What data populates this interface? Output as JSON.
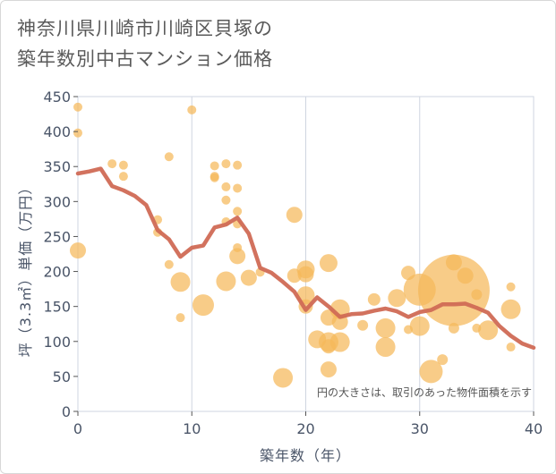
{
  "title_line1": "神奈川県川崎市川崎区貝塚の",
  "title_line2": "築年数別中古マンション価格",
  "chart_data": {
    "type": "scatter",
    "xlabel": "築年数（年）",
    "ylabel": "坪（3.3㎡）単価（万円）",
    "xlim": [
      0,
      40
    ],
    "ylim": [
      0,
      450
    ],
    "x_ticks": [
      "0",
      "10",
      "20",
      "30",
      "40"
    ],
    "y_ticks": [
      "0",
      "50",
      "100",
      "150",
      "200",
      "250",
      "300",
      "350",
      "400",
      "450"
    ],
    "grid": true,
    "note": "円の大きさは、取引のあった物件面積を示す",
    "bubble_color": "#f5b95a",
    "line_color": "#d06a55",
    "bubbles": [
      {
        "x": 0,
        "y": 435,
        "r": 5
      },
      {
        "x": 0,
        "y": 398,
        "r": 5
      },
      {
        "x": 0,
        "y": 230,
        "r": 9
      },
      {
        "x": 3,
        "y": 354,
        "r": 5
      },
      {
        "x": 4,
        "y": 352,
        "r": 5
      },
      {
        "x": 4,
        "y": 336,
        "r": 5
      },
      {
        "x": 7,
        "y": 274,
        "r": 5
      },
      {
        "x": 7,
        "y": 256,
        "r": 5
      },
      {
        "x": 8,
        "y": 364,
        "r": 5
      },
      {
        "x": 8,
        "y": 210,
        "r": 5
      },
      {
        "x": 9,
        "y": 185,
        "r": 11
      },
      {
        "x": 9,
        "y": 134,
        "r": 5
      },
      {
        "x": 10,
        "y": 431,
        "r": 5
      },
      {
        "x": 11,
        "y": 152,
        "r": 12
      },
      {
        "x": 12,
        "y": 351,
        "r": 5
      },
      {
        "x": 12,
        "y": 336,
        "r": 5
      },
      {
        "x": 12,
        "y": 334,
        "r": 5
      },
      {
        "x": 13,
        "y": 354,
        "r": 5
      },
      {
        "x": 13,
        "y": 321,
        "r": 5
      },
      {
        "x": 13,
        "y": 302,
        "r": 5
      },
      {
        "x": 13,
        "y": 271,
        "r": 5
      },
      {
        "x": 13,
        "y": 186,
        "r": 11
      },
      {
        "x": 14,
        "y": 352,
        "r": 5
      },
      {
        "x": 14,
        "y": 319,
        "r": 5
      },
      {
        "x": 14,
        "y": 286,
        "r": 5
      },
      {
        "x": 14,
        "y": 268,
        "r": 5
      },
      {
        "x": 14,
        "y": 234,
        "r": 5
      },
      {
        "x": 14,
        "y": 222,
        "r": 9
      },
      {
        "x": 15,
        "y": 191,
        "r": 9
      },
      {
        "x": 16,
        "y": 199,
        "r": 5
      },
      {
        "x": 18,
        "y": 48,
        "r": 11
      },
      {
        "x": 19,
        "y": 281,
        "r": 9
      },
      {
        "x": 19,
        "y": 194,
        "r": 8
      },
      {
        "x": 20,
        "y": 203,
        "r": 10
      },
      {
        "x": 20,
        "y": 196,
        "r": 9
      },
      {
        "x": 20,
        "y": 166,
        "r": 10
      },
      {
        "x": 20,
        "y": 150,
        "r": 8
      },
      {
        "x": 21,
        "y": 103,
        "r": 10
      },
      {
        "x": 22,
        "y": 212,
        "r": 10
      },
      {
        "x": 22,
        "y": 134,
        "r": 9
      },
      {
        "x": 22,
        "y": 99,
        "r": 11
      },
      {
        "x": 22,
        "y": 93,
        "r": 8
      },
      {
        "x": 22,
        "y": 60,
        "r": 9
      },
      {
        "x": 23,
        "y": 146,
        "r": 11
      },
      {
        "x": 23,
        "y": 128,
        "r": 9
      },
      {
        "x": 23,
        "y": 99,
        "r": 11
      },
      {
        "x": 25,
        "y": 123,
        "r": 6
      },
      {
        "x": 26,
        "y": 160,
        "r": 7
      },
      {
        "x": 27,
        "y": 119,
        "r": 11
      },
      {
        "x": 27,
        "y": 92,
        "r": 11
      },
      {
        "x": 28,
        "y": 162,
        "r": 10
      },
      {
        "x": 29,
        "y": 198,
        "r": 8
      },
      {
        "x": 29,
        "y": 117,
        "r": 5
      },
      {
        "x": 30,
        "y": 174,
        "r": 18
      },
      {
        "x": 30,
        "y": 122,
        "r": 11
      },
      {
        "x": 31,
        "y": 57,
        "r": 13
      },
      {
        "x": 32,
        "y": 74,
        "r": 6
      },
      {
        "x": 33,
        "y": 173,
        "r": 40
      },
      {
        "x": 33,
        "y": 213,
        "r": 9
      },
      {
        "x": 33,
        "y": 119,
        "r": 6
      },
      {
        "x": 34,
        "y": 194,
        "r": 9
      },
      {
        "x": 35,
        "y": 167,
        "r": 6
      },
      {
        "x": 35,
        "y": 119,
        "r": 5
      },
      {
        "x": 36,
        "y": 116,
        "r": 11
      },
      {
        "x": 38,
        "y": 178,
        "r": 5
      },
      {
        "x": 38,
        "y": 146,
        "r": 11
      },
      {
        "x": 38,
        "y": 92,
        "r": 5
      }
    ],
    "series": [
      {
        "type": "line",
        "x": [
          0,
          1,
          2,
          3,
          4,
          5,
          6,
          7,
          8,
          9,
          10,
          11,
          12,
          13,
          14,
          15,
          16,
          17,
          18,
          19,
          20,
          21,
          22,
          23,
          24,
          25,
          26,
          27,
          28,
          29,
          30,
          31,
          32,
          33,
          34,
          35,
          36,
          37,
          38,
          39,
          40
        ],
        "y": [
          340,
          343,
          347,
          322,
          316,
          308,
          295,
          259,
          246,
          221,
          234,
          237,
          263,
          267,
          277,
          254,
          205,
          198,
          185,
          171,
          145,
          163,
          150,
          135,
          139,
          140,
          144,
          147,
          143,
          135,
          142,
          145,
          153,
          153,
          154,
          148,
          141,
          122,
          108,
          97,
          91
        ]
      }
    ]
  }
}
